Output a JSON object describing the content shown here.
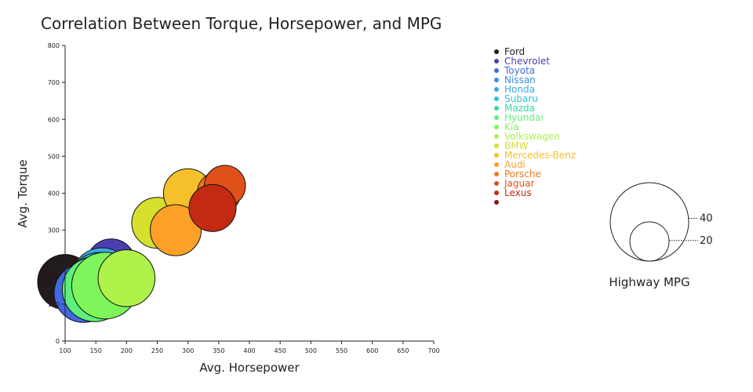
{
  "chart_data": {
    "type": "scatter",
    "title": "Correlation Between Torque, Horsepower, and MPG",
    "xlabel": "Avg. Horsepower",
    "ylabel": "Avg. Torque",
    "xlim": [
      100,
      700
    ],
    "ylim": [
      0,
      800
    ],
    "x_ticks": [
      100,
      150,
      200,
      250,
      300,
      350,
      400,
      450,
      500,
      550,
      600,
      650,
      700
    ],
    "y_ticks": [
      0,
      100,
      200,
      300,
      400,
      500,
      600,
      700,
      800
    ],
    "grid": false,
    "legend_position": "top-right",
    "size_legend": {
      "title": "Highway MPG",
      "values": [
        40,
        20
      ]
    },
    "series": [
      {
        "name": "Ford",
        "color": "#231a1e",
        "x": 100,
        "y": 160,
        "mpg": 28
      },
      {
        "name": "Chevrolet",
        "color": "#4a3fb0",
        "x": 175,
        "y": 210,
        "mpg": 25
      },
      {
        "name": "Toyota",
        "color": "#4169e1",
        "x": 130,
        "y": 130,
        "mpg": 30
      },
      {
        "name": "Nissan",
        "color": "#3a8ee6",
        "x": 150,
        "y": 150,
        "mpg": 29
      },
      {
        "name": "Honda",
        "color": "#3aa9e0",
        "x": 160,
        "y": 170,
        "mpg": 31
      },
      {
        "name": "Subaru",
        "color": "#2ec4d6",
        "x": 155,
        "y": 160,
        "mpg": 30
      },
      {
        "name": "Mazda",
        "color": "#36d9a0",
        "x": 150,
        "y": 145,
        "mpg": 32
      },
      {
        "name": "Hyundai",
        "color": "#5ef07a",
        "x": 148,
        "y": 140,
        "mpg": 33
      },
      {
        "name": "Kia",
        "color": "#7ef55a",
        "x": 165,
        "y": 150,
        "mpg": 34
      },
      {
        "name": "Volkswagen",
        "color": "#aef24a",
        "x": 200,
        "y": 170,
        "mpg": 29
      },
      {
        "name": "BMW",
        "color": "#d8e02e",
        "x": 250,
        "y": 320,
        "mpg": 26
      },
      {
        "name": "Mercedes-Benz",
        "color": "#f5c12a",
        "x": 300,
        "y": 400,
        "mpg": 25
      },
      {
        "name": "Audi",
        "color": "#fca028",
        "x": 280,
        "y": 300,
        "mpg": 26
      },
      {
        "name": "Porsche",
        "color": "#f27a1c",
        "x": 350,
        "y": 400,
        "mpg": 22
      },
      {
        "name": "Jaguar",
        "color": "#e0501a",
        "x": 360,
        "y": 420,
        "mpg": 21
      },
      {
        "name": "Lexus",
        "color": "#c42a12",
        "x": 340,
        "y": 360,
        "mpg": 24
      },
      {
        "name": "",
        "color": "#8b1a0e",
        "x": null,
        "y": null,
        "mpg": null
      }
    ]
  }
}
